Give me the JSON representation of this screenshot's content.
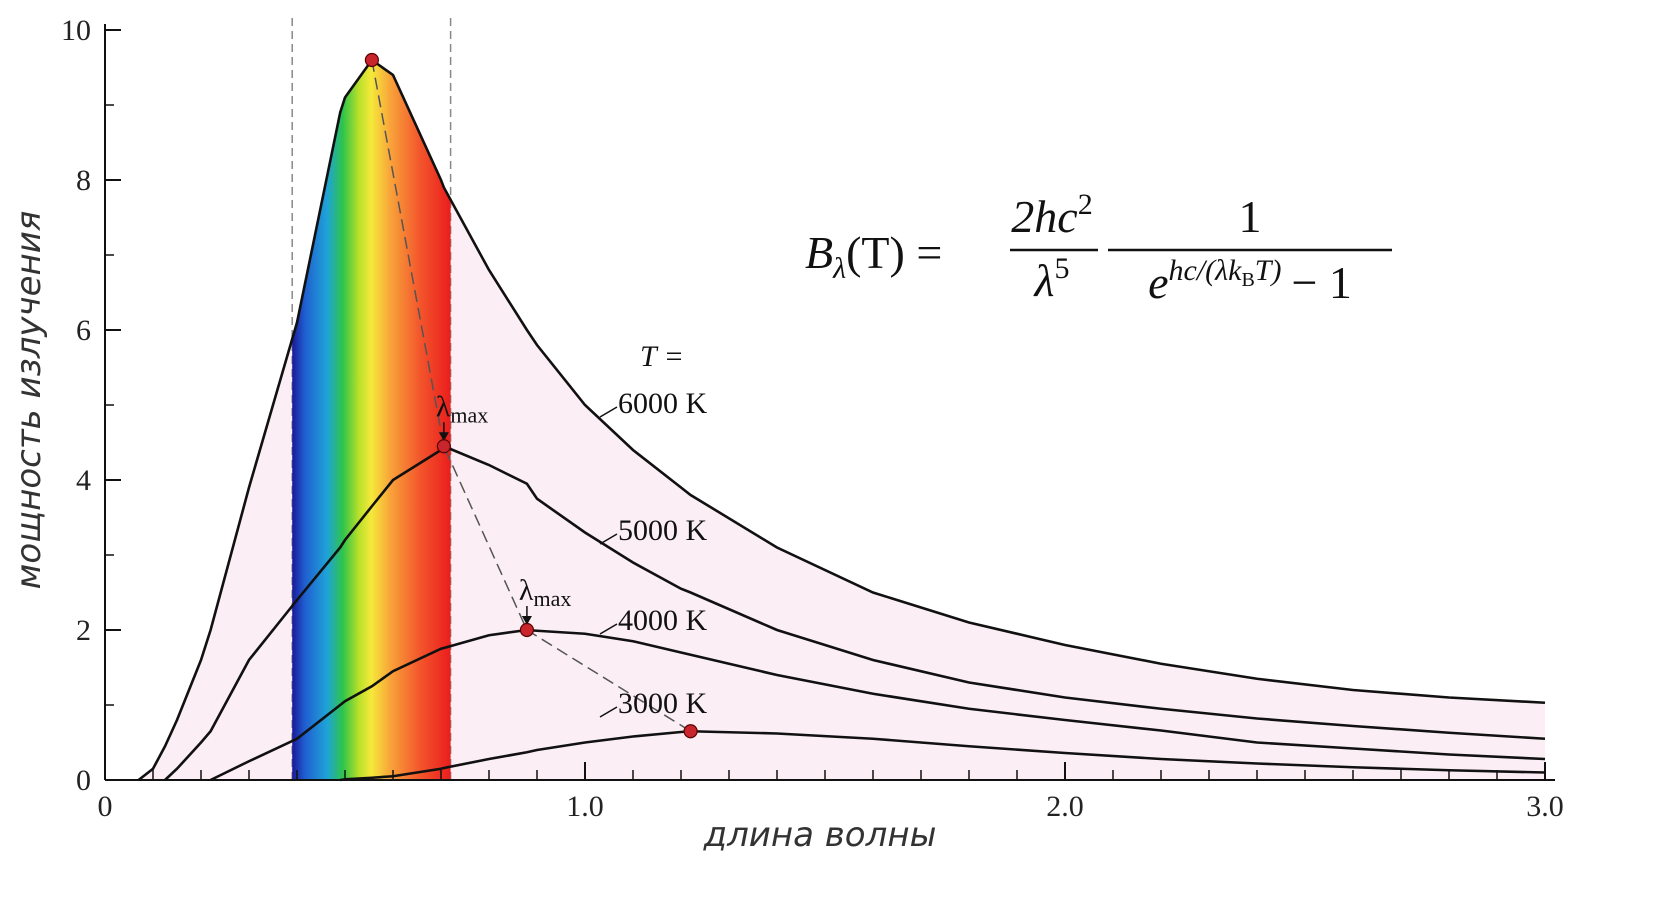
{
  "chart_data": {
    "type": "line",
    "x_label": "длина волны",
    "y_label": "мощность излучения",
    "x": [
      0.07,
      0.1,
      0.125,
      0.15,
      0.2,
      0.22,
      0.3,
      0.4,
      0.49,
      0.5,
      0.556,
      0.6,
      0.7,
      0.706,
      0.8,
      0.879,
      0.9,
      1.0,
      1.1,
      1.2,
      1.22,
      1.4,
      1.6,
      1.8,
      2.0,
      2.2,
      2.4,
      2.6,
      2.8,
      3.0
    ],
    "series": [
      {
        "name": "6000 K",
        "color": "#111111",
        "values": [
          0,
          0.15,
          0.45,
          0.8,
          1.6,
          2.0,
          3.9,
          6.1,
          8.9,
          9.1,
          9.6,
          9.4,
          8.0,
          7.9,
          6.8,
          6.0,
          5.8,
          5.0,
          4.4,
          3.9,
          3.8,
          3.1,
          2.5,
          2.1,
          1.8,
          1.55,
          1.35,
          1.2,
          1.1,
          1.03
        ]
      },
      {
        "name": "5000 K",
        "color": "#111111",
        "values": [
          null,
          null,
          0,
          0.15,
          0.5,
          0.65,
          1.6,
          2.4,
          3.1,
          3.2,
          3.65,
          4.0,
          4.4,
          4.45,
          4.2,
          3.95,
          3.75,
          3.3,
          2.9,
          2.55,
          2.5,
          2.0,
          1.6,
          1.3,
          1.1,
          0.95,
          0.82,
          0.72,
          0.63,
          0.55
        ]
      },
      {
        "name": "4000 K",
        "color": "#111111",
        "values": [
          null,
          null,
          null,
          null,
          null,
          0,
          0.25,
          0.55,
          1.0,
          1.05,
          1.25,
          1.45,
          1.75,
          1.76,
          1.93,
          2.0,
          1.99,
          1.95,
          1.85,
          1.7,
          1.67,
          1.4,
          1.15,
          0.95,
          0.8,
          0.66,
          0.5,
          0.42,
          0.34,
          0.28
        ]
      },
      {
        "name": "3000 K",
        "color": "#111111",
        "values": [
          null,
          null,
          null,
          null,
          null,
          null,
          null,
          null,
          0,
          0.01,
          0.03,
          0.05,
          0.15,
          0.16,
          0.28,
          0.37,
          0.4,
          0.5,
          0.58,
          0.64,
          0.65,
          0.62,
          0.55,
          0.45,
          0.36,
          0.28,
          0.22,
          0.17,
          0.13,
          0.1
        ]
      }
    ],
    "xlim": [
      0,
      3
    ],
    "ylim": [
      0,
      10
    ],
    "xticks": [
      0,
      {
        "value": 1,
        "label": "1.0"
      },
      {
        "value": 2,
        "label": "2.0"
      },
      {
        "value": 3,
        "label": "3.0"
      }
    ],
    "xminorticks": [
      0.1,
      0.2,
      0.3,
      0.4,
      0.5,
      0.6,
      0.7,
      0.8,
      0.9,
      1.1,
      1.2,
      1.3,
      1.4,
      1.5,
      1.6,
      1.7,
      1.8,
      1.9,
      2.1,
      2.2,
      2.3,
      2.4,
      2.5,
      2.6,
      2.7,
      2.8,
      2.9
    ],
    "yticks": [
      0,
      2,
      4,
      6,
      8,
      10
    ],
    "yminorticks": [
      1,
      3,
      5,
      7,
      9
    ],
    "visible_band": [
      0.39,
      0.72
    ],
    "fill_color": "#fbeef4",
    "peak_color": "#c8262c",
    "annotations": {
      "temperature": "T =",
      "lambda": "λ",
      "lambda_sub": "max"
    },
    "formula": {
      "B": "B",
      "B_sub": "λ",
      "lhs_rest": "(T) =",
      "num1": "2hc",
      "num1_sup": "2",
      "den1": "λ",
      "den1_sup": "5",
      "num2": "1",
      "den2_base": "e",
      "den2_exp": "hc/(λk",
      "den2_exp_sub": "B",
      "den2_exp_end": "T)",
      "den2_rest": "− 1"
    }
  }
}
